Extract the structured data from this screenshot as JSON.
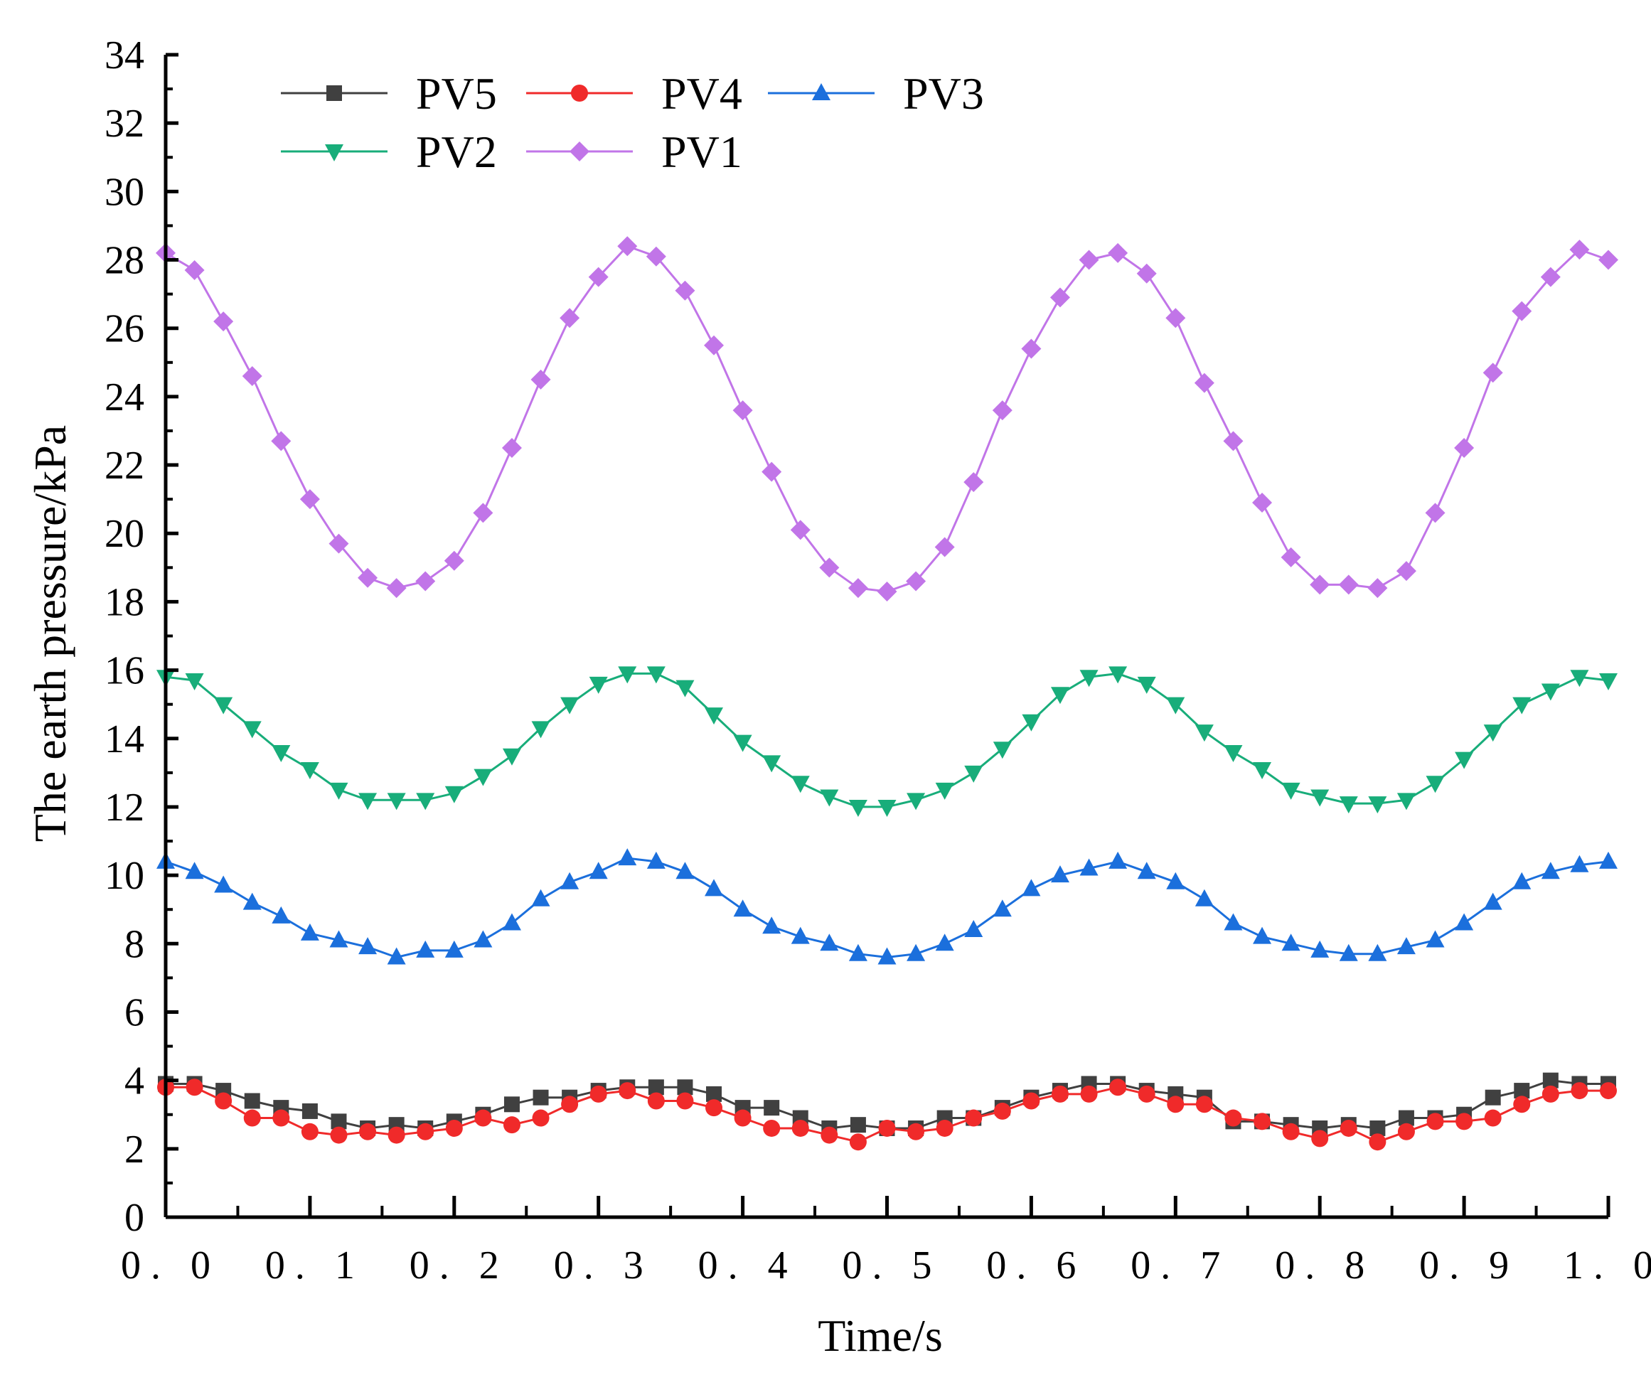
{
  "chart_data": {
    "type": "line",
    "title": "",
    "xlabel": "Time/s",
    "ylabel": "The earth pressure/kPa",
    "xlim": [
      0,
      1
    ],
    "ylim": [
      0,
      34
    ],
    "grid": false,
    "legend_position": "top-left",
    "x_ticks": [
      "0. 0",
      "0. 1",
      "0. 2",
      "0. 3",
      "0. 4",
      "0. 5",
      "0. 6",
      "0. 7",
      "0. 8",
      "0. 9",
      "1. 0"
    ],
    "y_ticks": [
      "0",
      "2",
      "4",
      "6",
      "8",
      "10",
      "12",
      "14",
      "16",
      "18",
      "20",
      "22",
      "24",
      "26",
      "28",
      "30",
      "32",
      "34"
    ],
    "x": [
      0.0,
      0.02,
      0.04,
      0.06,
      0.08,
      0.1,
      0.12,
      0.14,
      0.16,
      0.18,
      0.2,
      0.22,
      0.24,
      0.26,
      0.28,
      0.3,
      0.32,
      0.34,
      0.36,
      0.38,
      0.4,
      0.42,
      0.44,
      0.46,
      0.48,
      0.5,
      0.52,
      0.54,
      0.56,
      0.58,
      0.6,
      0.62,
      0.64,
      0.66,
      0.68,
      0.7,
      0.72,
      0.74,
      0.76,
      0.78,
      0.8,
      0.82,
      0.84,
      0.86,
      0.88,
      0.9,
      0.92,
      0.94,
      0.96,
      0.98,
      1.0
    ],
    "series": [
      {
        "name": "PV5",
        "color": "#404040",
        "marker": "square",
        "values": [
          3.9,
          3.9,
          3.7,
          3.4,
          3.2,
          3.1,
          2.8,
          2.6,
          2.7,
          2.6,
          2.8,
          3.0,
          3.3,
          3.5,
          3.5,
          3.7,
          3.8,
          3.8,
          3.8,
          3.6,
          3.2,
          3.2,
          2.9,
          2.6,
          2.7,
          2.6,
          2.6,
          2.9,
          2.9,
          3.2,
          3.5,
          3.7,
          3.9,
          3.9,
          3.7,
          3.6,
          3.5,
          2.8,
          2.8,
          2.7,
          2.6,
          2.7,
          2.6,
          2.9,
          2.9,
          3.0,
          3.5,
          3.7,
          4.0,
          3.9,
          3.9
        ]
      },
      {
        "name": "PV4",
        "color": "#f02a2a",
        "marker": "circle",
        "values": [
          3.8,
          3.8,
          3.4,
          2.9,
          2.9,
          2.5,
          2.4,
          2.5,
          2.4,
          2.5,
          2.6,
          2.9,
          2.7,
          2.9,
          3.3,
          3.6,
          3.7,
          3.4,
          3.4,
          3.2,
          2.9,
          2.6,
          2.6,
          2.4,
          2.2,
          2.6,
          2.5,
          2.6,
          2.9,
          3.1,
          3.4,
          3.6,
          3.6,
          3.8,
          3.6,
          3.3,
          3.3,
          2.9,
          2.8,
          2.5,
          2.3,
          2.6,
          2.2,
          2.5,
          2.8,
          2.8,
          2.9,
          3.3,
          3.6,
          3.7,
          3.7
        ]
      },
      {
        "name": "PV3",
        "color": "#1b6fdc",
        "marker": "triangle-up",
        "values": [
          10.4,
          10.1,
          9.7,
          9.2,
          8.8,
          8.3,
          8.1,
          7.9,
          7.6,
          7.8,
          7.8,
          8.1,
          8.6,
          9.3,
          9.8,
          10.1,
          10.5,
          10.4,
          10.1,
          9.6,
          9.0,
          8.5,
          8.2,
          8.0,
          7.7,
          7.6,
          7.7,
          8.0,
          8.4,
          9.0,
          9.6,
          10.0,
          10.2,
          10.4,
          10.1,
          9.8,
          9.3,
          8.6,
          8.2,
          8.0,
          7.8,
          7.7,
          7.7,
          7.9,
          8.1,
          8.6,
          9.2,
          9.8,
          10.1,
          10.3,
          10.4
        ]
      },
      {
        "name": "PV2",
        "color": "#18ad7a",
        "marker": "triangle-down",
        "values": [
          15.8,
          15.7,
          15.0,
          14.3,
          13.6,
          13.1,
          12.5,
          12.2,
          12.2,
          12.2,
          12.4,
          12.9,
          13.5,
          14.3,
          15.0,
          15.6,
          15.9,
          15.9,
          15.5,
          14.7,
          13.9,
          13.3,
          12.7,
          12.3,
          12.0,
          12.0,
          12.2,
          12.5,
          13.0,
          13.7,
          14.5,
          15.3,
          15.8,
          15.9,
          15.6,
          15.0,
          14.2,
          13.6,
          13.1,
          12.5,
          12.3,
          12.1,
          12.1,
          12.2,
          12.7,
          13.4,
          14.2,
          15.0,
          15.4,
          15.8,
          15.7
        ]
      },
      {
        "name": "PV1",
        "color": "#c175e8",
        "marker": "diamond",
        "values": [
          28.2,
          27.7,
          26.2,
          24.6,
          22.7,
          21.0,
          19.7,
          18.7,
          18.4,
          18.6,
          19.2,
          20.6,
          22.5,
          24.5,
          26.3,
          27.5,
          28.4,
          28.1,
          27.1,
          25.5,
          23.6,
          21.8,
          20.1,
          19.0,
          18.4,
          18.3,
          18.6,
          19.6,
          21.5,
          23.6,
          25.4,
          26.9,
          28.0,
          28.2,
          27.6,
          26.3,
          24.4,
          22.7,
          20.9,
          19.3,
          18.5,
          18.5,
          18.4,
          18.9,
          20.6,
          22.5,
          24.7,
          26.5,
          27.5,
          28.3,
          28.0
        ]
      }
    ]
  }
}
